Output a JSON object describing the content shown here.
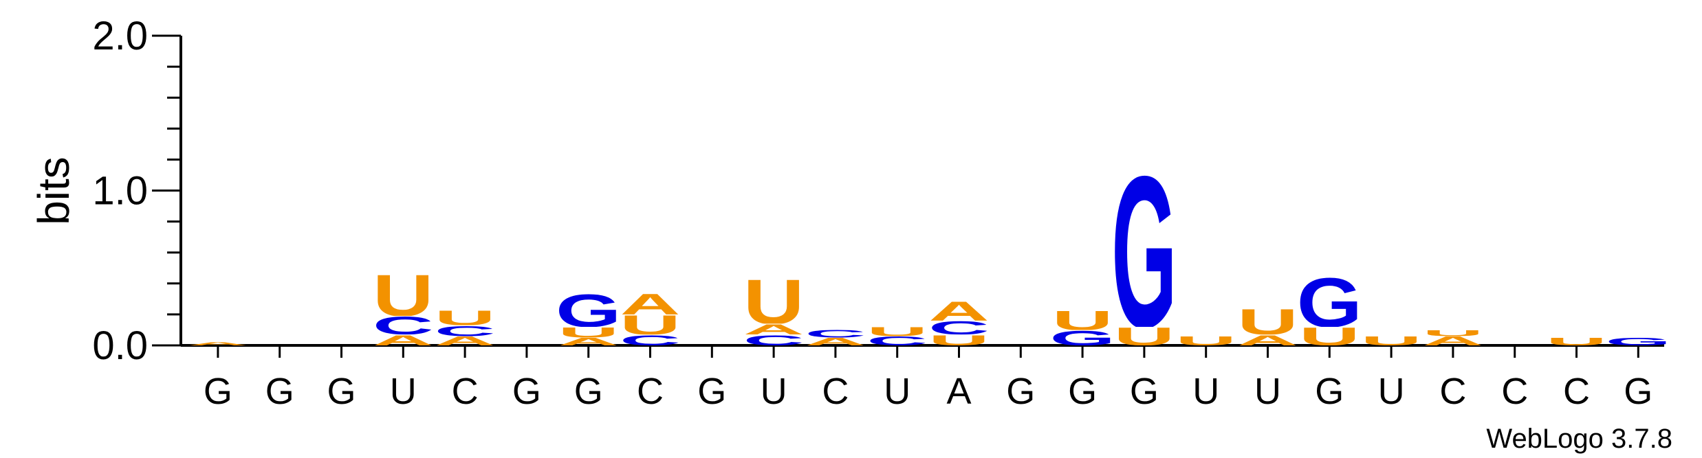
{
  "colors": {
    "G": "#0000e6",
    "C": "#0000e6",
    "A": "#f39200",
    "U": "#f39200",
    "axis": "#000000"
  },
  "chart_data": {
    "type": "sequence-logo",
    "ylabel": "bits",
    "ylim": [
      0,
      2.0
    ],
    "y_ticks": [
      "0.0",
      "1.0",
      "2.0"
    ],
    "x_labels": [
      "G",
      "G",
      "G",
      "U",
      "C",
      "G",
      "G",
      "C",
      "G",
      "U",
      "C",
      "U",
      "A",
      "G",
      "G",
      "G",
      "U",
      "U",
      "G",
      "U",
      "C",
      "C",
      "C",
      "G"
    ],
    "footer": "WebLogo 3.7.8",
    "positions": [
      {
        "letters": [
          [
            "A",
            0.02
          ]
        ]
      },
      {
        "letters": []
      },
      {
        "letters": []
      },
      {
        "letters": [
          [
            "A",
            0.07
          ],
          [
            "C",
            0.12
          ],
          [
            "U",
            0.28
          ]
        ]
      },
      {
        "letters": [
          [
            "A",
            0.06
          ],
          [
            "C",
            0.07
          ],
          [
            "U",
            0.1
          ]
        ]
      },
      {
        "letters": []
      },
      {
        "letters": [
          [
            "A",
            0.05
          ],
          [
            "U",
            0.07
          ],
          [
            "G",
            0.22
          ]
        ]
      },
      {
        "letters": [
          [
            "C",
            0.07
          ],
          [
            "U",
            0.13
          ],
          [
            "A",
            0.14
          ]
        ]
      },
      {
        "letters": []
      },
      {
        "letters": [
          [
            "C",
            0.07
          ],
          [
            "A",
            0.07
          ],
          [
            "U",
            0.3
          ]
        ]
      },
      {
        "letters": [
          [
            "A",
            0.05
          ],
          [
            "C",
            0.05
          ]
        ]
      },
      {
        "letters": [
          [
            "C",
            0.06
          ],
          [
            "U",
            0.06
          ]
        ]
      },
      {
        "letters": [
          [
            "U",
            0.07
          ],
          [
            "C",
            0.09
          ],
          [
            "A",
            0.13
          ]
        ]
      },
      {
        "letters": []
      },
      {
        "letters": [
          [
            "G",
            0.1
          ],
          [
            "U",
            0.13
          ]
        ]
      },
      {
        "letters": [
          [
            "U",
            0.12
          ],
          [
            "G",
            1.02
          ]
        ]
      },
      {
        "letters": [
          [
            "U",
            0.06
          ]
        ]
      },
      {
        "letters": [
          [
            "A",
            0.07
          ],
          [
            "U",
            0.17
          ]
        ]
      },
      {
        "letters": [
          [
            "U",
            0.12
          ],
          [
            "G",
            0.33
          ]
        ]
      },
      {
        "letters": [
          [
            "U",
            0.06
          ]
        ]
      },
      {
        "letters": [
          [
            "A",
            0.06
          ],
          [
            "U",
            0.04
          ]
        ]
      },
      {
        "letters": []
      },
      {
        "letters": [
          [
            "U",
            0.05
          ]
        ]
      },
      {
        "letters": [
          [
            "G",
            0.05
          ]
        ]
      }
    ]
  }
}
